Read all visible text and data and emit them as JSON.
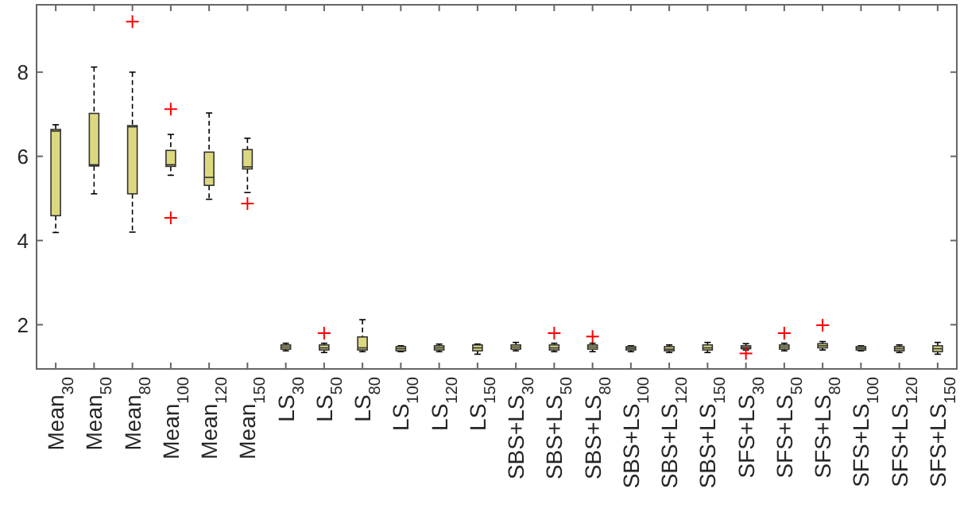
{
  "chart_data": {
    "type": "box",
    "categories": [
      "Mean$_{30}$",
      "Mean$_{50}$",
      "Mean$_{80}$",
      "Mean$_{100}$",
      "Mean$_{120}$",
      "Mean$_{150}$",
      "LS$_{30}$",
      "LS$_{50}$",
      "LS$_{80}$",
      "LS$_{100}$",
      "LS$_{120}$",
      "LS$_{150}$",
      "SBS+LS$_{30}$",
      "SBS+LS$_{50}$",
      "SBS+LS$_{80}$",
      "SBS+LS$_{100}$",
      "SBS+LS$_{120}$",
      "SBS+LS$_{150}$",
      "SFS+LS$_{30}$",
      "SFS+LS$_{50}$",
      "SFS+LS$_{80}$",
      "SFS+LS$_{100}$",
      "SFS+LS$_{120}$",
      "SFS+LS$_{150}$"
    ],
    "color": "#dcd880",
    "boxes": [
      {
        "low": 4.19,
        "q1": 4.59,
        "median": 6.6,
        "q3": 6.64,
        "high": 6.75
      },
      {
        "low": 5.11,
        "q1": 5.77,
        "median": 5.8,
        "q3": 7.02,
        "high": 8.12
      },
      {
        "low": 4.2,
        "q1": 5.11,
        "median": 6.7,
        "q3": 6.73,
        "high": 8.0,
        "outliers": [
          9.2
        ]
      },
      {
        "low": 5.55,
        "q1": 5.76,
        "median": 5.8,
        "q3": 6.14,
        "high": 6.52,
        "outliers": [
          7.12,
          4.54
        ]
      },
      {
        "low": 4.98,
        "q1": 5.31,
        "median": 5.5,
        "q3": 6.1,
        "high": 7.03
      },
      {
        "low": 5.14,
        "q1": 5.7,
        "median": 5.75,
        "q3": 6.16,
        "high": 6.43,
        "outliers": [
          4.88
        ]
      },
      {
        "low": 1.38,
        "q1": 1.42,
        "median": 1.47,
        "q3": 1.52,
        "high": 1.56
      },
      {
        "low": 1.34,
        "q1": 1.4,
        "median": 1.45,
        "q3": 1.52,
        "high": 1.56,
        "outliers": [
          1.8
        ]
      },
      {
        "low": 1.36,
        "q1": 1.4,
        "median": 1.45,
        "q3": 1.71,
        "high": 2.12
      },
      {
        "low": 1.36,
        "q1": 1.38,
        "median": 1.43,
        "q3": 1.48,
        "high": 1.5
      },
      {
        "low": 1.36,
        "q1": 1.4,
        "median": 1.45,
        "q3": 1.5,
        "high": 1.54
      },
      {
        "low": 1.3,
        "q1": 1.38,
        "median": 1.45,
        "q3": 1.52,
        "high": 1.54
      },
      {
        "low": 1.38,
        "q1": 1.42,
        "median": 1.47,
        "q3": 1.52,
        "high": 1.58
      },
      {
        "low": 1.36,
        "q1": 1.4,
        "median": 1.45,
        "q3": 1.52,
        "high": 1.56,
        "outliers": [
          1.8
        ]
      },
      {
        "low": 1.36,
        "q1": 1.42,
        "median": 1.47,
        "q3": 1.52,
        "high": 1.56,
        "outliers": [
          1.72
        ]
      },
      {
        "low": 1.36,
        "q1": 1.4,
        "median": 1.44,
        "q3": 1.48,
        "high": 1.5
      },
      {
        "low": 1.34,
        "q1": 1.38,
        "median": 1.42,
        "q3": 1.48,
        "high": 1.52
      },
      {
        "low": 1.34,
        "q1": 1.4,
        "median": 1.45,
        "q3": 1.52,
        "high": 1.58
      },
      {
        "low": 1.4,
        "q1": 1.43,
        "median": 1.46,
        "q3": 1.5,
        "high": 1.55,
        "outliers": [
          1.32
        ]
      },
      {
        "low": 1.38,
        "q1": 1.42,
        "median": 1.47,
        "q3": 1.52,
        "high": 1.56,
        "outliers": [
          1.8
        ]
      },
      {
        "low": 1.4,
        "q1": 1.45,
        "median": 1.5,
        "q3": 1.55,
        "high": 1.6,
        "outliers": [
          1.99
        ]
      },
      {
        "low": 1.38,
        "q1": 1.4,
        "median": 1.44,
        "q3": 1.48,
        "high": 1.5
      },
      {
        "low": 1.34,
        "q1": 1.38,
        "median": 1.43,
        "q3": 1.48,
        "high": 1.52
      },
      {
        "low": 1.3,
        "q1": 1.36,
        "median": 1.43,
        "q3": 1.5,
        "high": 1.58
      }
    ],
    "ylim": [
      0.95,
      9.6
    ],
    "yticks": [
      2,
      4,
      6,
      8
    ],
    "grid": false
  }
}
